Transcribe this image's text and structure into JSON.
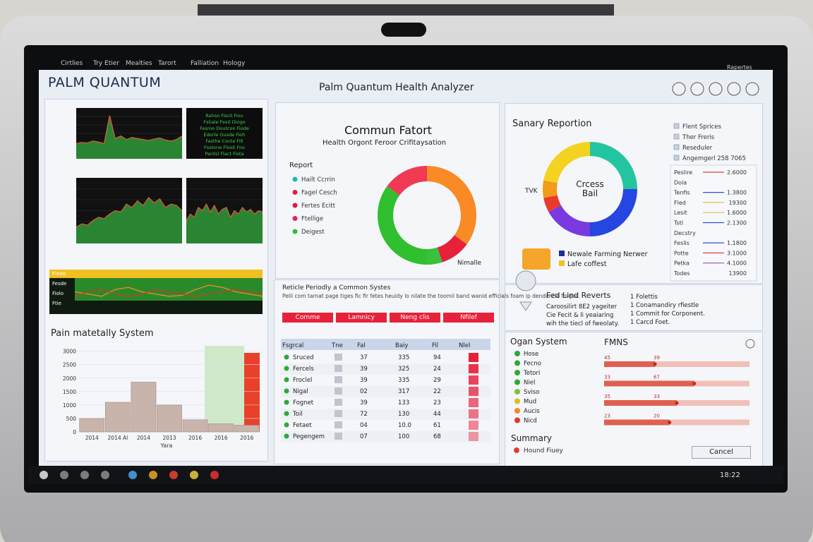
{
  "menu": [
    "Cirtlies",
    "Try Etier",
    "Mealties",
    "Tarort",
    "Falliation",
    "Hology"
  ],
  "window": {
    "label": "Rapertes"
  },
  "header": {
    "brand": "PALM QUANTUM",
    "title": "Palm Quantum Health Analyzer"
  },
  "left": {
    "line_charts": [
      {
        "values": [
          30,
          32,
          31,
          35,
          33,
          30,
          85,
          40,
          45,
          38,
          42,
          40,
          38,
          36,
          39,
          41,
          37,
          35,
          38,
          45
        ],
        "ylim": [
          0,
          100
        ],
        "color": "#2f9a3a"
      },
      {
        "values": [
          25,
          30,
          28,
          35,
          40,
          38,
          45,
          50,
          48,
          60,
          55,
          65,
          58,
          70,
          62,
          68,
          55,
          60,
          58,
          50
        ],
        "ylim": [
          0,
          100
        ],
        "color": "#2f9a3a"
      },
      {
        "values": [
          35,
          45,
          40,
          55,
          50,
          60,
          48,
          58,
          45,
          52,
          55,
          40,
          50,
          45,
          55,
          48,
          52,
          45,
          50,
          48
        ],
        "ylim": [
          0,
          100
        ],
        "color": "#2f9a3a"
      }
    ],
    "console_lines": [
      "Rahso Fiscit Fiou",
      "Fstiale Fesit Diogo",
      "Fesmo Doutcon Fiode",
      "Edorle Ousde Fioh",
      "Fasthe Cocte Filt",
      "Fsstone Flosit Foo",
      "Paritsl Flact Fiota"
    ],
    "band_chart": {
      "labels": [
        "Fledo",
        "Fesde",
        "Fiolo",
        "Ftie"
      ],
      "ylim": [
        0,
        100
      ],
      "series": [
        {
          "color": "#f08a2a",
          "values": [
            50,
            45,
            40,
            55,
            60,
            50,
            45,
            40,
            42,
            55,
            65,
            60,
            50,
            45,
            40
          ]
        },
        {
          "color": "#d9342a",
          "values": [
            40,
            50,
            55,
            45,
            40,
            45,
            55,
            50,
            45,
            40,
            45,
            50,
            55,
            50,
            45
          ]
        }
      ]
    },
    "bar_chart": {
      "title": "Pain matetally System",
      "x_label": "Yara",
      "color": "#c9b4ac",
      "categories": [
        "2014",
        "2014 Al",
        "2014",
        "2013",
        "2016",
        "2016",
        "2016"
      ],
      "values": [
        500,
        1100,
        1850,
        1000,
        450,
        300,
        250
      ],
      "ylim": [
        0,
        3200
      ],
      "yticks": [
        0,
        500,
        1000,
        1500,
        2000,
        2500,
        3000
      ]
    }
  },
  "center": {
    "title": "Commun Fatort",
    "subtitle": "Health Orgont Feroor Crifitaysation",
    "legend_title": "Report",
    "note": "Nimalle",
    "legend": [
      {
        "name": "Hailt Ccrrin",
        "color": "#1fb8b0"
      },
      {
        "name": "Fagel Cesch",
        "color": "#e8213a"
      },
      {
        "name": "Fertes Ecitt",
        "color": "#d81f3a"
      },
      {
        "name": "Ftellige",
        "color": "#e8214a"
      },
      {
        "name": "Deigest",
        "color": "#2fbf3a"
      }
    ],
    "donut": {
      "values": [
        35,
        10,
        5,
        35,
        15
      ],
      "colors": [
        "#f98a25",
        "#e8213a",
        "#38c13a",
        "#2fbf2f",
        "#f03a55"
      ]
    }
  },
  "table": {
    "title": "Reticle Periodly a Common Systes",
    "description": "Pelli com tarnat page tiges fic fir fetes heuidy lo nilate the\ntoomil band wanid efficials foam ip dendio cia fisigec.",
    "buttons": [
      "Comme",
      "Lamnicy",
      "Neng clis",
      "Nfilef"
    ],
    "headers": [
      "Fsgrcal",
      "Tne",
      "Fal",
      "Baiy",
      "Fil",
      "Nlel"
    ],
    "rows": [
      [
        "Sruced",
        "37",
        "335",
        "94"
      ],
      [
        "Fercels",
        "39",
        "325",
        "24"
      ],
      [
        "Froclel",
        "39",
        "335",
        "29"
      ],
      [
        "Nigal",
        "02",
        "317",
        "22"
      ],
      [
        "Fognet",
        "39",
        "133",
        "23"
      ],
      [
        "Toil",
        "72",
        "130",
        "44"
      ],
      [
        "Fetaet",
        "04",
        "10.0",
        "61"
      ],
      [
        "Pegengem",
        "07",
        "100",
        "68"
      ]
    ]
  },
  "summary": {
    "title": "Sanary Reportion",
    "side_label": "TVK",
    "center_label": "Crcess\nBail",
    "donut": {
      "values": [
        25,
        25,
        17,
        5,
        6,
        22
      ],
      "colors": [
        "#23c5a0",
        "#2546e0",
        "#7a3ae0",
        "#ea3a2a",
        "#f29a1a",
        "#f3d320"
      ]
    },
    "legend": [
      {
        "name": "Newale Farming Nerwer",
        "color": "#1f2f9a"
      },
      {
        "name": "Lafe coffest",
        "color": "#f3c320"
      }
    ],
    "filters": [
      "Flent Sprices",
      "Ther Freris",
      "Reseduler",
      "Angemgerl  258 7065"
    ],
    "rows": [
      [
        "Peslire",
        "2.6000",
        "#e04040"
      ],
      [
        "Dola",
        "",
        ""
      ],
      [
        "Tenfis",
        "1.3800",
        "#3050d0"
      ],
      [
        "Fled",
        "19300",
        "#e0c040"
      ],
      [
        "Lesit",
        "1.6000",
        "#e0c040"
      ],
      [
        "Tstl",
        "2.1300",
        "#3050d0"
      ],
      [
        "Decstry",
        "",
        ""
      ],
      [
        "Feslis",
        "1.1800",
        "#3050d0"
      ],
      [
        "Potte",
        "3.1000",
        "#e04040"
      ],
      [
        "Petka",
        "4.1000",
        "#9050c0"
      ],
      [
        "Todes",
        "13900",
        ""
      ]
    ]
  },
  "events": {
    "title": "Fed Lind Reverts",
    "lines": [
      "Caroosilirt 8E2 yageiter",
      "Cie Fecit & li yeaiaring",
      "wih the tiecl of fweolaty."
    ],
    "items": [
      "1  Folettis",
      "1  Conamandiry rfiestle",
      "1  Commit for Corponent.",
      "1  Carcd Foet."
    ]
  },
  "organ": {
    "title": "Ogan System",
    "summary": "Summary",
    "button": "Cancel",
    "items": [
      {
        "name": "Hose",
        "color": "#2fa83a"
      },
      {
        "name": "Fecno",
        "color": "#2fa83a"
      },
      {
        "name": "Tetori",
        "color": "#2fa83a"
      },
      {
        "name": "Niel",
        "color": "#2fa83a"
      },
      {
        "name": "Sviso",
        "color": "#7ac43a"
      },
      {
        "name": "Mud",
        "color": "#d8c020"
      },
      {
        "name": "Aucis",
        "color": "#f08a2a"
      },
      {
        "name": "Nicd",
        "color": "#e03a2a"
      }
    ],
    "status": {
      "name": "Hound Fiuey",
      "color": "#e03a3a"
    }
  },
  "fmns": {
    "title": "FMNS",
    "xlim": [
      0,
      100
    ],
    "bars": [
      {
        "value": 35,
        "labels": [
          "45",
          "39"
        ]
      },
      {
        "value": 62,
        "labels": [
          "33",
          "67"
        ]
      },
      {
        "value": 50,
        "labels": [
          "35",
          "33"
        ]
      },
      {
        "value": 45,
        "labels": [
          "23",
          "20"
        ]
      }
    ]
  },
  "taskbar": {
    "clock": "18:22"
  }
}
